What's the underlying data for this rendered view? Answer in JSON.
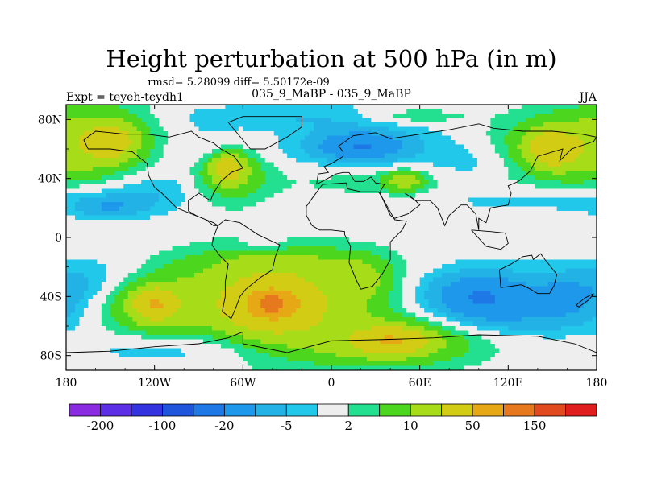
{
  "chart_data": {
    "type": "heatmap",
    "title": "Height perturbation at 500 hPa (in m)",
    "stats_line": "rmsd= 5.28099 diff= 5.50172e-09",
    "left_label": "Expt = teyeh-teydh1",
    "center_label": "035_9_MaBP - 035_9_MaBP",
    "right_label": "JJA",
    "xlim": [
      -180,
      180
    ],
    "ylim": [
      -90,
      90
    ],
    "x_ticks": [
      {
        "value": -180,
        "label": "180"
      },
      {
        "value": -120,
        "label": "120W"
      },
      {
        "value": -60,
        "label": "60W"
      },
      {
        "value": 0,
        "label": "0"
      },
      {
        "value": 60,
        "label": "60E"
      },
      {
        "value": 120,
        "label": "120E"
      },
      {
        "value": 180,
        "label": "180"
      }
    ],
    "y_ticks": [
      {
        "value": 80,
        "label": "80N"
      },
      {
        "value": 40,
        "label": "40N"
      },
      {
        "value": 0,
        "label": "0"
      },
      {
        "value": -40,
        "label": "40S"
      },
      {
        "value": -80,
        "label": "80S"
      }
    ],
    "levels": [
      -200,
      -150,
      -100,
      -50,
      -20,
      -10,
      -5,
      -2,
      2,
      5,
      10,
      20,
      50,
      100,
      150,
      200
    ],
    "colorbar_labels": [
      "-200",
      "-100",
      "-20",
      "-5",
      "2",
      "10",
      "50",
      "150"
    ],
    "colors": [
      "#8a2be2",
      "#5c2ee6",
      "#3333e0",
      "#1f55dd",
      "#1e78e6",
      "#1e98ea",
      "#22b2e6",
      "#22c8ea",
      "#eeeeee",
      "#22e090",
      "#4cd61e",
      "#a6dc18",
      "#d2cc14",
      "#e6a814",
      "#e6781e",
      "#e04a1e",
      "#e01e1e"
    ],
    "blobs": [
      {
        "lon": -160,
        "lat": 65,
        "dlon": 28,
        "dlat": 18,
        "value": 14
      },
      {
        "lon": -150,
        "lat": 65,
        "dlon": 10,
        "dlat": 7,
        "value": 25
      },
      {
        "lon": -120,
        "lat": 35,
        "dlon": 22,
        "dlat": 10,
        "value": -4
      },
      {
        "lon": -82,
        "lat": 60,
        "dlon": 20,
        "dlat": 12,
        "value": -5
      },
      {
        "lon": -70,
        "lat": 45,
        "dlon": 18,
        "dlat": 14,
        "value": 12
      },
      {
        "lon": -70,
        "lat": 47,
        "dlon": 7,
        "dlat": 6,
        "value": 25
      },
      {
        "lon": -35,
        "lat": 82,
        "dlon": 55,
        "dlat": 6,
        "value": -4
      },
      {
        "lon": 20,
        "lat": 60,
        "dlon": 40,
        "dlat": 15,
        "value": -6
      },
      {
        "lon": 20,
        "lat": 62,
        "dlon": 20,
        "dlat": 6,
        "value": -15
      },
      {
        "lon": 55,
        "lat": 82,
        "dlon": 25,
        "dlat": 4,
        "value": 6
      },
      {
        "lon": 25,
        "lat": 40,
        "dlon": 45,
        "dlat": 9,
        "value": 5
      },
      {
        "lon": 50,
        "lat": 38,
        "dlon": 10,
        "dlat": 5,
        "value": 12
      },
      {
        "lon": 100,
        "lat": 50,
        "dlon": 25,
        "dlat": 10,
        "value": -4
      },
      {
        "lon": 150,
        "lat": 60,
        "dlon": 28,
        "dlat": 16,
        "value": 12
      },
      {
        "lon": 150,
        "lat": 60,
        "dlon": 10,
        "dlat": 7,
        "value": 30
      },
      {
        "lon": -150,
        "lat": 25,
        "dlon": 35,
        "dlat": 8,
        "value": -4
      },
      {
        "lon": -150,
        "lat": 20,
        "dlon": 15,
        "dlat": 5,
        "value": -7
      },
      {
        "lon": 130,
        "lat": 25,
        "dlon": 50,
        "dlat": 6,
        "value": -3
      },
      {
        "lon": -45,
        "lat": -5,
        "dlon": 12,
        "dlat": 4,
        "value": -4
      },
      {
        "lon": -40,
        "lat": -18,
        "dlon": 45,
        "dlat": 8,
        "value": 6
      },
      {
        "lon": -160,
        "lat": -30,
        "dlon": 30,
        "dlat": 12,
        "value": -5
      },
      {
        "lon": -120,
        "lat": -45,
        "dlon": 25,
        "dlat": 14,
        "value": 15
      },
      {
        "lon": -120,
        "lat": -45,
        "dlon": 8,
        "dlat": 6,
        "value": 40
      },
      {
        "lon": -40,
        "lat": -45,
        "dlon": 40,
        "dlat": 22,
        "value": 18
      },
      {
        "lon": -40,
        "lat": -45,
        "dlon": 18,
        "dlat": 10,
        "value": 45
      },
      {
        "lon": -40,
        "lat": -45,
        "dlon": 8,
        "dlat": 5,
        "value": 70
      },
      {
        "lon": 20,
        "lat": -30,
        "dlon": 18,
        "dlat": 12,
        "value": 10
      },
      {
        "lon": 40,
        "lat": -70,
        "dlon": 40,
        "dlat": 12,
        "value": 15
      },
      {
        "lon": 40,
        "lat": -70,
        "dlon": 14,
        "dlat": 5,
        "value": 40
      },
      {
        "lon": 110,
        "lat": -40,
        "dlon": 45,
        "dlat": 15,
        "value": -6
      },
      {
        "lon": 100,
        "lat": -40,
        "dlon": 20,
        "dlat": 10,
        "value": -15
      },
      {
        "lon": 130,
        "lat": -55,
        "dlon": 40,
        "dlat": 8,
        "value": -5
      },
      {
        "lon": 160,
        "lat": -40,
        "dlon": 20,
        "dlat": 10,
        "value": -8
      },
      {
        "lon": -100,
        "lat": -75,
        "dlon": 45,
        "dlat": 8,
        "value": -5
      }
    ],
    "coastlines": [
      [
        [
          -168,
          66
        ],
        [
          -160,
          72
        ],
        [
          -140,
          70
        ],
        [
          -125,
          70
        ],
        [
          -110,
          68
        ],
        [
          -95,
          72
        ],
        [
          -90,
          68
        ],
        [
          -80,
          64
        ],
        [
          -75,
          60
        ],
        [
          -66,
          55
        ],
        [
          -60,
          47
        ],
        [
          -68,
          44
        ],
        [
          -75,
          38
        ],
        [
          -80,
          30
        ],
        [
          -82,
          25
        ],
        [
          -90,
          30
        ],
        [
          -97,
          25
        ],
        [
          -97,
          18
        ],
        [
          -92,
          15
        ],
        [
          -85,
          12
        ],
        [
          -80,
          8
        ],
        [
          -77,
          8
        ],
        [
          -80,
          10
        ],
        [
          -90,
          14
        ],
        [
          -105,
          20
        ],
        [
          -115,
          30
        ],
        [
          -120,
          34
        ],
        [
          -124,
          42
        ],
        [
          -125,
          50
        ],
        [
          -135,
          58
        ],
        [
          -150,
          60
        ],
        [
          -165,
          60
        ],
        [
          -168,
          66
        ]
      ],
      [
        [
          -77,
          8
        ],
        [
          -72,
          12
        ],
        [
          -62,
          10
        ],
        [
          -50,
          2
        ],
        [
          -35,
          -5
        ],
        [
          -38,
          -13
        ],
        [
          -40,
          -22
        ],
        [
          -48,
          -27
        ],
        [
          -58,
          -35
        ],
        [
          -62,
          -40
        ],
        [
          -65,
          -48
        ],
        [
          -68,
          -55
        ],
        [
          -74,
          -50
        ],
        [
          -72,
          -40
        ],
        [
          -72,
          -30
        ],
        [
          -70,
          -18
        ],
        [
          -76,
          -12
        ],
        [
          -81,
          -5
        ],
        [
          -80,
          0
        ],
        [
          -77,
          8
        ]
      ],
      [
        [
          -55,
          60
        ],
        [
          -45,
          60
        ],
        [
          -30,
          68
        ],
        [
          -20,
          75
        ],
        [
          -20,
          82
        ],
        [
          -60,
          82
        ],
        [
          -70,
          78
        ],
        [
          -55,
          60
        ]
      ],
      [
        [
          -10,
          36
        ],
        [
          -9,
          43
        ],
        [
          -2,
          44
        ],
        [
          -5,
          48
        ],
        [
          0,
          50
        ],
        [
          8,
          55
        ],
        [
          8,
          58
        ],
        [
          5,
          62
        ],
        [
          15,
          69
        ],
        [
          30,
          71
        ],
        [
          40,
          67
        ],
        [
          60,
          70
        ],
        [
          80,
          73
        ],
        [
          100,
          77
        ],
        [
          110,
          74
        ],
        [
          130,
          72
        ],
        [
          150,
          72
        ],
        [
          170,
          70
        ],
        [
          180,
          68
        ],
        [
          178,
          65
        ],
        [
          163,
          60
        ],
        [
          155,
          52
        ],
        [
          157,
          60
        ],
        [
          140,
          55
        ],
        [
          135,
          45
        ],
        [
          127,
          38
        ],
        [
          120,
          35
        ],
        [
          122,
          30
        ],
        [
          120,
          22
        ],
        [
          108,
          20
        ],
        [
          105,
          10
        ],
        [
          100,
          13
        ],
        [
          100,
          5
        ],
        [
          98,
          16
        ],
        [
          92,
          22
        ],
        [
          88,
          22
        ],
        [
          80,
          15
        ],
        [
          77,
          8
        ],
        [
          72,
          20
        ],
        [
          67,
          25
        ],
        [
          57,
          25
        ],
        [
          50,
          30
        ],
        [
          56,
          26
        ],
        [
          60,
          22
        ],
        [
          52,
          16
        ],
        [
          43,
          13
        ],
        [
          40,
          15
        ],
        [
          34,
          28
        ],
        [
          33,
          31
        ],
        [
          36,
          36
        ],
        [
          30,
          37
        ],
        [
          27,
          41
        ],
        [
          22,
          38
        ],
        [
          16,
          38
        ],
        [
          12,
          44
        ],
        [
          8,
          44
        ],
        [
          3,
          43
        ],
        [
          -10,
          36
        ]
      ],
      [
        [
          -17,
          15
        ],
        [
          -17,
          21
        ],
        [
          -12,
          28
        ],
        [
          -6,
          36
        ],
        [
          10,
          37
        ],
        [
          11,
          33
        ],
        [
          20,
          31
        ],
        [
          32,
          31
        ],
        [
          34,
          28
        ],
        [
          43,
          12
        ],
        [
          51,
          11
        ],
        [
          48,
          5
        ],
        [
          40,
          -3
        ],
        [
          40,
          -15
        ],
        [
          35,
          -24
        ],
        [
          28,
          -33
        ],
        [
          20,
          -35
        ],
        [
          17,
          -29
        ],
        [
          12,
          -17
        ],
        [
          13,
          -6
        ],
        [
          9,
          2
        ],
        [
          9,
          4
        ],
        [
          0,
          5
        ],
        [
          -8,
          5
        ],
        [
          -13,
          8
        ],
        [
          -17,
          15
        ]
      ],
      [
        [
          114,
          -22
        ],
        [
          122,
          -18
        ],
        [
          130,
          -13
        ],
        [
          136,
          -12
        ],
        [
          137,
          -15
        ],
        [
          142,
          -11
        ],
        [
          145,
          -15
        ],
        [
          153,
          -25
        ],
        [
          151,
          -33
        ],
        [
          148,
          -38
        ],
        [
          140,
          -38
        ],
        [
          135,
          -35
        ],
        [
          129,
          -32
        ],
        [
          115,
          -34
        ],
        [
          114,
          -22
        ]
      ],
      [
        [
          -180,
          -78
        ],
        [
          -150,
          -77
        ],
        [
          -120,
          -74
        ],
        [
          -90,
          -72
        ],
        [
          -70,
          -68
        ],
        [
          -60,
          -64
        ],
        [
          -60,
          -72
        ],
        [
          -30,
          -78
        ],
        [
          0,
          -70
        ],
        [
          40,
          -69
        ],
        [
          70,
          -68
        ],
        [
          100,
          -66
        ],
        [
          140,
          -67
        ],
        [
          165,
          -72
        ],
        [
          180,
          -78
        ]
      ],
      [
        [
          95,
          5
        ],
        [
          105,
          -6
        ],
        [
          115,
          -8
        ],
        [
          120,
          -4
        ],
        [
          118,
          3
        ],
        [
          108,
          4
        ],
        [
          95,
          5
        ]
      ],
      [
        [
          166,
          -46
        ],
        [
          172,
          -41
        ],
        [
          178,
          -38
        ],
        [
          175,
          -42
        ],
        [
          168,
          -47
        ],
        [
          166,
          -46
        ]
      ]
    ]
  }
}
